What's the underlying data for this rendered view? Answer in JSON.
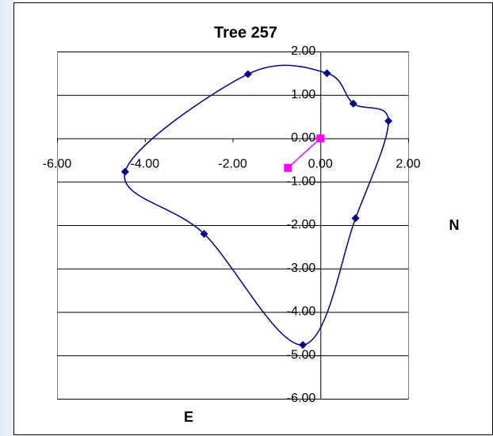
{
  "chart_data": {
    "type": "scatter",
    "title": "Tree 257",
    "xlabel": "E",
    "ylabel": "N",
    "xlim": [
      -6,
      2
    ],
    "ylim": [
      -6,
      2
    ],
    "xticks": [
      {
        "value": -6,
        "label": "-6.00"
      },
      {
        "value": -4,
        "label": "-4.00"
      },
      {
        "value": -2,
        "label": "-2.00"
      },
      {
        "value": 0,
        "label": "0.00"
      },
      {
        "value": 2,
        "label": "2.00"
      }
    ],
    "yticks": [
      {
        "value": 2,
        "label": "2.00"
      },
      {
        "value": 1,
        "label": "1.00"
      },
      {
        "value": 0,
        "label": "0.00"
      },
      {
        "value": -1,
        "label": "-1.00"
      },
      {
        "value": -2,
        "label": "-2.00"
      },
      {
        "value": -3,
        "label": "-3.00"
      },
      {
        "value": -4,
        "label": "-4.00"
      },
      {
        "value": -5,
        "label": "-5.00"
      },
      {
        "value": -6,
        "label": "-6.00"
      }
    ],
    "grid": true,
    "series": [
      {
        "color": "#000080",
        "marker": "diamond",
        "smooth": true,
        "closed": true,
        "x": [
          -4.45,
          -1.65,
          0.15,
          0.75,
          1.55,
          0.8,
          -0.4,
          -2.65
        ],
        "y": [
          -0.77,
          1.48,
          1.5,
          0.8,
          0.4,
          -1.84,
          -4.76,
          -2.2
        ]
      },
      {
        "color": "#ff00ff",
        "marker": "square",
        "smooth": false,
        "closed": false,
        "x": [
          0,
          -0.74
        ],
        "y": [
          0,
          -0.68
        ]
      }
    ]
  }
}
